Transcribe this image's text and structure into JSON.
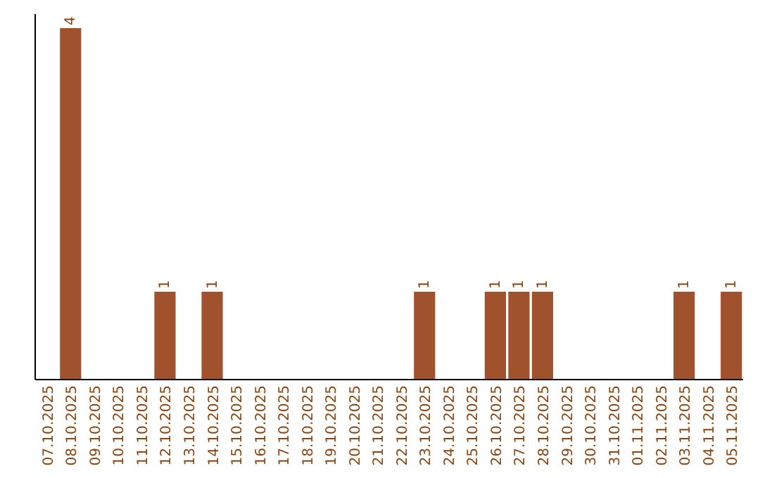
{
  "chart_data": {
    "type": "bar",
    "categories": [
      "07.10.2025",
      "08.10.2025",
      "09.10.2025",
      "10.10.2025",
      "11.10.2025",
      "12.10.2025",
      "13.10.2025",
      "14.10.2025",
      "15.10.2025",
      "16.10.2025",
      "17.10.2025",
      "18.10.2025",
      "19.10.2025",
      "20.10.2025",
      "21.10.2025",
      "22.10.2025",
      "23.10.2025",
      "24.10.2025",
      "25.10.2025",
      "26.10.2025",
      "27.10.2025",
      "28.10.2025",
      "29.10.2025",
      "30.10.2025",
      "31.10.2025",
      "01.11.2025",
      "02.11.2025",
      "03.11.2025",
      "04.11.2025",
      "05.11.2025"
    ],
    "values": [
      0,
      4,
      0,
      0,
      0,
      1,
      0,
      1,
      0,
      0,
      0,
      0,
      0,
      0,
      0,
      0,
      1,
      0,
      0,
      1,
      1,
      1,
      0,
      0,
      0,
      0,
      0,
      1,
      0,
      1
    ],
    "value_labels": [
      null,
      "4",
      null,
      null,
      null,
      "1",
      null,
      "1",
      null,
      null,
      null,
      null,
      null,
      null,
      null,
      null,
      "1",
      null,
      null,
      "1",
      "1",
      "1",
      null,
      null,
      null,
      null,
      null,
      "1",
      null,
      "1"
    ],
    "color": "#a0522d"
  }
}
